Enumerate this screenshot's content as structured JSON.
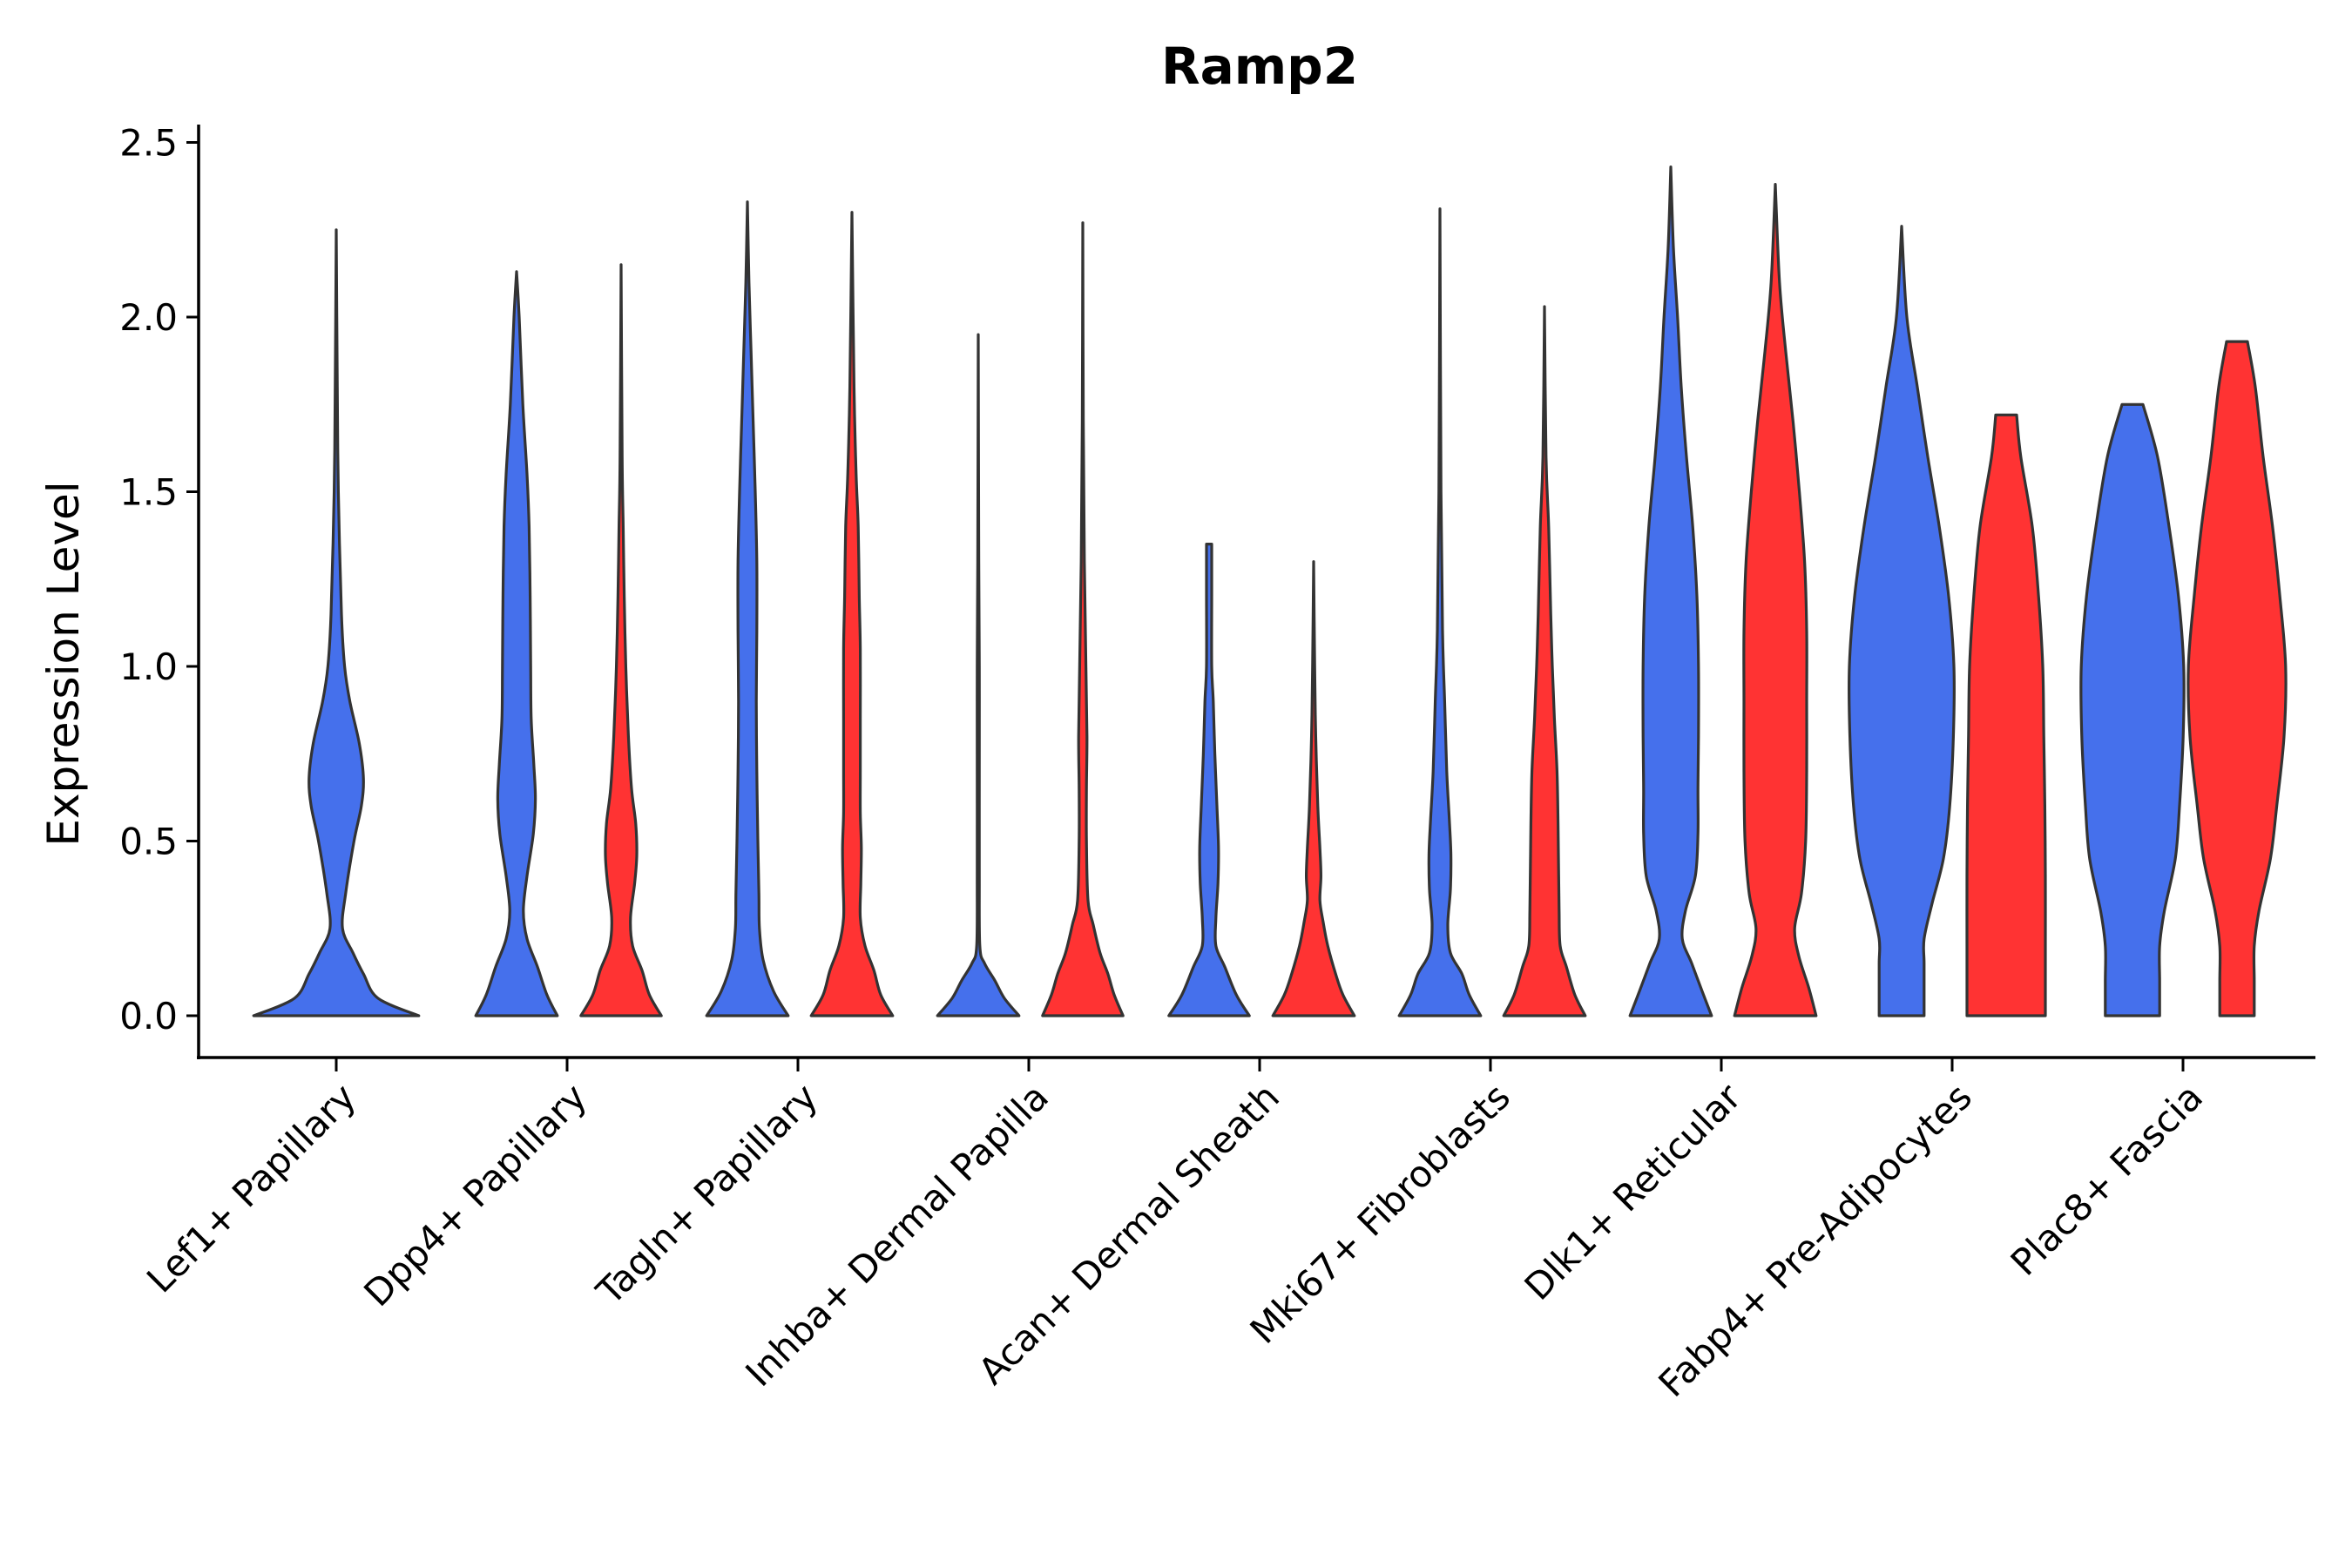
{
  "chart_data": {
    "type": "violin",
    "title": "Ramp2",
    "xlabel": "",
    "ylabel": "Expression Level",
    "ylim": [
      -0.12,
      2.55
    ],
    "yticks": [
      0.0,
      0.5,
      1.0,
      1.5,
      2.0,
      2.5
    ],
    "ytick_labels": [
      "0.0",
      "0.5",
      "1.0",
      "1.5",
      "2.0",
      "2.5"
    ],
    "categories": [
      "Lef1+ Papillary",
      "Dpp4+ Papillary",
      "Tagln+ Papillary",
      "Inhba+ Dermal Papilla",
      "Acan+ Dermal Sheath",
      "Mki67+ Fibroblasts",
      "Dlk1+ Reticular",
      "Fabp4+ Pre-Adipocytes",
      "Plac8+ Fascia"
    ],
    "series_colors": {
      "blue": "#4570EC",
      "red": "#FF3333"
    },
    "violins": [
      {
        "category": "Lef1+ Papillary",
        "split": "single",
        "color": "blue",
        "ymax": 2.25,
        "profile": [
          [
            0,
            0.79
          ],
          [
            0.05,
            0.4
          ],
          [
            0.12,
            0.26
          ],
          [
            0.18,
            0.16
          ],
          [
            0.25,
            0.06
          ],
          [
            0.35,
            0.09
          ],
          [
            0.5,
            0.17
          ],
          [
            0.6,
            0.24
          ],
          [
            0.68,
            0.26
          ],
          [
            0.78,
            0.22
          ],
          [
            0.9,
            0.13
          ],
          [
            1.0,
            0.08
          ],
          [
            1.15,
            0.05
          ],
          [
            1.5,
            0.02
          ],
          [
            1.8,
            0.01
          ],
          [
            2.25,
            0
          ]
        ]
      },
      {
        "category": "Dpp4+ Papillary",
        "split": "left",
        "color": "blue",
        "ymax": 2.13,
        "profile": [
          [
            0,
            0.78
          ],
          [
            0.06,
            0.58
          ],
          [
            0.14,
            0.4
          ],
          [
            0.22,
            0.2
          ],
          [
            0.3,
            0.13
          ],
          [
            0.4,
            0.2
          ],
          [
            0.52,
            0.32
          ],
          [
            0.62,
            0.36
          ],
          [
            0.72,
            0.33
          ],
          [
            0.85,
            0.28
          ],
          [
            1.0,
            0.27
          ],
          [
            1.2,
            0.26
          ],
          [
            1.4,
            0.24
          ],
          [
            1.55,
            0.2
          ],
          [
            1.75,
            0.12
          ],
          [
            2.0,
            0.05
          ],
          [
            2.13,
            0
          ]
        ]
      },
      {
        "category": "Dpp4+ Papillary",
        "split": "right",
        "color": "red",
        "ymax": 2.15,
        "profile": [
          [
            0,
            0.77
          ],
          [
            0.06,
            0.54
          ],
          [
            0.13,
            0.4
          ],
          [
            0.2,
            0.22
          ],
          [
            0.28,
            0.18
          ],
          [
            0.38,
            0.26
          ],
          [
            0.46,
            0.3
          ],
          [
            0.55,
            0.28
          ],
          [
            0.65,
            0.2
          ],
          [
            0.8,
            0.14
          ],
          [
            1.0,
            0.09
          ],
          [
            1.2,
            0.06
          ],
          [
            1.4,
            0.04
          ],
          [
            1.6,
            0.02
          ],
          [
            2.15,
            0
          ]
        ]
      },
      {
        "category": "Tagln+ Papillary",
        "split": "left",
        "color": "blue",
        "ymax": 2.33,
        "profile": [
          [
            0,
            0.78
          ],
          [
            0.07,
            0.5
          ],
          [
            0.16,
            0.3
          ],
          [
            0.25,
            0.23
          ],
          [
            0.35,
            0.22
          ],
          [
            0.5,
            0.2
          ],
          [
            0.7,
            0.18
          ],
          [
            0.9,
            0.17
          ],
          [
            1.1,
            0.18
          ],
          [
            1.3,
            0.18
          ],
          [
            1.5,
            0.15
          ],
          [
            1.7,
            0.11
          ],
          [
            1.9,
            0.07
          ],
          [
            2.1,
            0.03
          ],
          [
            2.33,
            0
          ]
        ]
      },
      {
        "category": "Tagln+ Papillary",
        "split": "right",
        "color": "red",
        "ymax": 2.3,
        "profile": [
          [
            0,
            0.78
          ],
          [
            0.06,
            0.55
          ],
          [
            0.13,
            0.42
          ],
          [
            0.2,
            0.25
          ],
          [
            0.28,
            0.16
          ],
          [
            0.38,
            0.17
          ],
          [
            0.48,
            0.18
          ],
          [
            0.58,
            0.16
          ],
          [
            0.7,
            0.16
          ],
          [
            0.85,
            0.16
          ],
          [
            1.05,
            0.16
          ],
          [
            1.2,
            0.14
          ],
          [
            1.4,
            0.12
          ],
          [
            1.55,
            0.08
          ],
          [
            1.8,
            0.04
          ],
          [
            2.3,
            0
          ]
        ]
      },
      {
        "category": "Inhba+ Dermal Papilla",
        "split": "left",
        "color": "blue",
        "ymax": 1.95,
        "profile": [
          [
            0,
            0.78
          ],
          [
            0.05,
            0.5
          ],
          [
            0.1,
            0.32
          ],
          [
            0.15,
            0.12
          ],
          [
            0.2,
            0.03
          ],
          [
            0.4,
            0.02
          ],
          [
            0.7,
            0.02
          ],
          [
            1.0,
            0.02
          ],
          [
            1.3,
            0.01
          ],
          [
            1.95,
            0
          ]
        ]
      },
      {
        "category": "Inhba+ Dermal Papilla",
        "split": "right",
        "color": "red",
        "ymax": 2.27,
        "profile": [
          [
            0,
            0.77
          ],
          [
            0.06,
            0.6
          ],
          [
            0.12,
            0.48
          ],
          [
            0.18,
            0.33
          ],
          [
            0.26,
            0.2
          ],
          [
            0.33,
            0.1
          ],
          [
            0.5,
            0.07
          ],
          [
            0.65,
            0.07
          ],
          [
            0.8,
            0.08
          ],
          [
            1.0,
            0.06
          ],
          [
            1.3,
            0.03
          ],
          [
            1.7,
            0.01
          ],
          [
            2.27,
            0
          ]
        ]
      },
      {
        "category": "Acan+ Dermal Sheath",
        "split": "left",
        "color": "blue",
        "ymax": 1.35,
        "profile": [
          [
            0,
            0.77
          ],
          [
            0.06,
            0.52
          ],
          [
            0.14,
            0.3
          ],
          [
            0.2,
            0.13
          ],
          [
            0.28,
            0.13
          ],
          [
            0.38,
            0.17
          ],
          [
            0.48,
            0.18
          ],
          [
            0.6,
            0.15
          ],
          [
            0.75,
            0.11
          ],
          [
            0.9,
            0.08
          ],
          [
            1.0,
            0.05
          ],
          [
            1.2,
            0.05
          ],
          [
            1.3,
            0.05
          ],
          [
            1.35,
            0.05
          ]
        ]
      },
      {
        "category": "Acan+ Dermal Sheath",
        "split": "right",
        "color": "red",
        "ymax": 1.3,
        "profile": [
          [
            0,
            0.78
          ],
          [
            0.06,
            0.56
          ],
          [
            0.12,
            0.42
          ],
          [
            0.2,
            0.27
          ],
          [
            0.27,
            0.18
          ],
          [
            0.33,
            0.12
          ],
          [
            0.4,
            0.14
          ],
          [
            0.48,
            0.12
          ],
          [
            0.6,
            0.08
          ],
          [
            0.8,
            0.04
          ],
          [
            1.0,
            0.02
          ],
          [
            1.3,
            0
          ]
        ]
      },
      {
        "category": "Mki67+ Fibroblasts",
        "split": "left",
        "color": "blue",
        "ymax": 2.31,
        "profile": [
          [
            0,
            0.78
          ],
          [
            0.06,
            0.56
          ],
          [
            0.12,
            0.42
          ],
          [
            0.18,
            0.2
          ],
          [
            0.26,
            0.15
          ],
          [
            0.36,
            0.2
          ],
          [
            0.46,
            0.21
          ],
          [
            0.56,
            0.18
          ],
          [
            0.7,
            0.13
          ],
          [
            0.9,
            0.09
          ],
          [
            1.1,
            0.05
          ],
          [
            1.5,
            0.02
          ],
          [
            2.31,
            0
          ]
        ]
      },
      {
        "category": "Mki67+ Fibroblasts",
        "split": "right",
        "color": "red",
        "ymax": 2.03,
        "profile": [
          [
            0,
            0.78
          ],
          [
            0.06,
            0.58
          ],
          [
            0.14,
            0.42
          ],
          [
            0.2,
            0.3
          ],
          [
            0.3,
            0.28
          ],
          [
            0.42,
            0.27
          ],
          [
            0.55,
            0.26
          ],
          [
            0.7,
            0.24
          ],
          [
            0.85,
            0.19
          ],
          [
            1.0,
            0.15
          ],
          [
            1.15,
            0.12
          ],
          [
            1.4,
            0.08
          ],
          [
            1.6,
            0.03
          ],
          [
            2.03,
            0
          ]
        ]
      },
      {
        "category": "Dlk1+ Reticular",
        "split": "left",
        "color": "blue",
        "ymax": 2.43,
        "profile": [
          [
            0,
            0.78
          ],
          [
            0.07,
            0.6
          ],
          [
            0.15,
            0.4
          ],
          [
            0.22,
            0.22
          ],
          [
            0.3,
            0.28
          ],
          [
            0.4,
            0.47
          ],
          [
            0.52,
            0.52
          ],
          [
            0.65,
            0.52
          ],
          [
            0.8,
            0.53
          ],
          [
            1.0,
            0.53
          ],
          [
            1.2,
            0.5
          ],
          [
            1.4,
            0.42
          ],
          [
            1.6,
            0.3
          ],
          [
            1.8,
            0.2
          ],
          [
            2.0,
            0.13
          ],
          [
            2.2,
            0.05
          ],
          [
            2.43,
            0
          ]
        ]
      },
      {
        "category": "Dlk1+ Reticular",
        "split": "right",
        "color": "red",
        "ymax": 2.38,
        "profile": [
          [
            0,
            0.78
          ],
          [
            0.08,
            0.64
          ],
          [
            0.17,
            0.45
          ],
          [
            0.25,
            0.37
          ],
          [
            0.35,
            0.5
          ],
          [
            0.5,
            0.58
          ],
          [
            0.7,
            0.6
          ],
          [
            0.9,
            0.6
          ],
          [
            1.1,
            0.6
          ],
          [
            1.3,
            0.56
          ],
          [
            1.5,
            0.46
          ],
          [
            1.7,
            0.34
          ],
          [
            1.9,
            0.2
          ],
          [
            2.1,
            0.08
          ],
          [
            2.38,
            0
          ]
        ]
      },
      {
        "category": "Fabp4+ Pre-Adipocytes",
        "split": "left",
        "color": "blue",
        "ymax": 2.26,
        "profile": [
          [
            0,
            0.43
          ],
          [
            0.05,
            0.43
          ],
          [
            0.15,
            0.43
          ],
          [
            0.22,
            0.43
          ],
          [
            0.32,
            0.58
          ],
          [
            0.45,
            0.8
          ],
          [
            0.6,
            0.92
          ],
          [
            0.8,
            0.99
          ],
          [
            1.0,
            1.0
          ],
          [
            1.2,
            0.9
          ],
          [
            1.4,
            0.72
          ],
          [
            1.6,
            0.5
          ],
          [
            1.8,
            0.3
          ],
          [
            2.0,
            0.1
          ],
          [
            2.26,
            0
          ]
        ]
      },
      {
        "category": "Fabp4+ Pre-Adipocytes",
        "split": "right",
        "color": "red",
        "ymax": 1.72,
        "profile": [
          [
            0,
            0.75
          ],
          [
            0.2,
            0.75
          ],
          [
            0.4,
            0.75
          ],
          [
            0.6,
            0.74
          ],
          [
            0.8,
            0.72
          ],
          [
            1.0,
            0.7
          ],
          [
            1.2,
            0.62
          ],
          [
            1.4,
            0.5
          ],
          [
            1.6,
            0.28
          ],
          [
            1.72,
            0.2
          ]
        ]
      },
      {
        "category": "Plac8+ Fascia",
        "split": "left",
        "color": "blue",
        "ymax": 1.75,
        "profile": [
          [
            0,
            0.52
          ],
          [
            0.1,
            0.52
          ],
          [
            0.2,
            0.52
          ],
          [
            0.3,
            0.61
          ],
          [
            0.45,
            0.82
          ],
          [
            0.6,
            0.9
          ],
          [
            0.8,
            0.97
          ],
          [
            1.0,
            0.98
          ],
          [
            1.2,
            0.88
          ],
          [
            1.4,
            0.7
          ],
          [
            1.6,
            0.48
          ],
          [
            1.75,
            0.2
          ]
        ]
      },
      {
        "category": "Plac8+ Fascia",
        "split": "right",
        "color": "red",
        "ymax": 1.93,
        "profile": [
          [
            0,
            0.33
          ],
          [
            0.1,
            0.33
          ],
          [
            0.2,
            0.33
          ],
          [
            0.3,
            0.42
          ],
          [
            0.45,
            0.64
          ],
          [
            0.6,
            0.76
          ],
          [
            0.8,
            0.9
          ],
          [
            1.0,
            0.93
          ],
          [
            1.2,
            0.82
          ],
          [
            1.4,
            0.68
          ],
          [
            1.6,
            0.5
          ],
          [
            1.8,
            0.35
          ],
          [
            1.93,
            0.2
          ]
        ]
      }
    ]
  }
}
